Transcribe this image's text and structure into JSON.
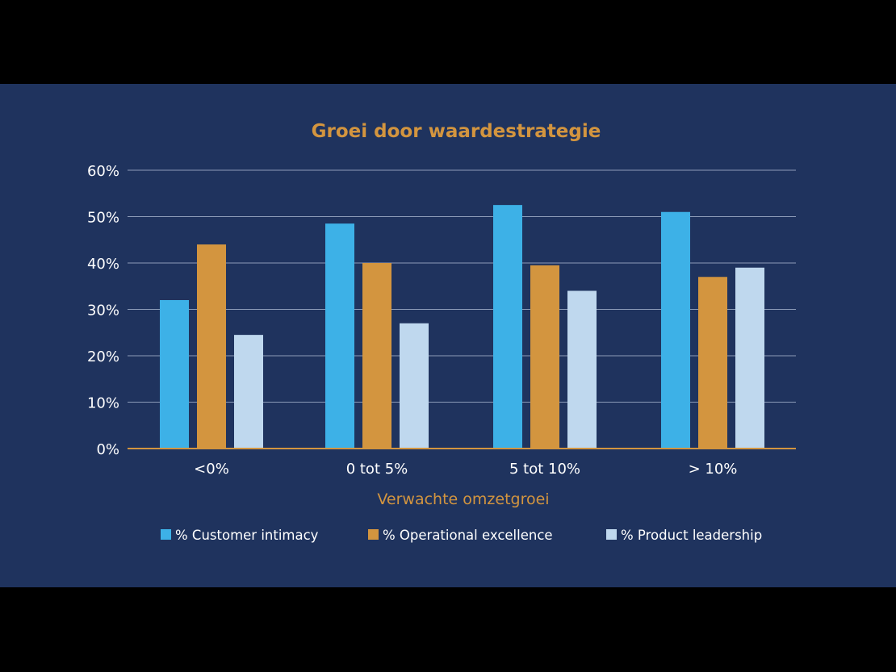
{
  "chart_data": {
    "type": "bar",
    "title": "Groei door waardestrategie",
    "xlabel": "Verwachte omzetgroei",
    "ylabel": "",
    "ylim": [
      0,
      60
    ],
    "yticks": [
      "0%",
      "10%",
      "20%",
      "30%",
      "40%",
      "50%",
      "60%"
    ],
    "categories": [
      "<0%",
      "0 tot 5%",
      "5 tot 10%",
      "> 10%"
    ],
    "series": [
      {
        "name": "% Customer intimacy",
        "color": "#3db1e7",
        "values": [
          32,
          48.5,
          52.5,
          51
        ]
      },
      {
        "name": "% Operational excellence",
        "color": "#d3953f",
        "values": [
          44,
          40,
          39.5,
          37
        ]
      },
      {
        "name": "% Product leadership",
        "color": "#bfd8ee",
        "values": [
          24.5,
          27,
          34,
          39
        ]
      }
    ],
    "grid": true,
    "legend": "bottom"
  }
}
